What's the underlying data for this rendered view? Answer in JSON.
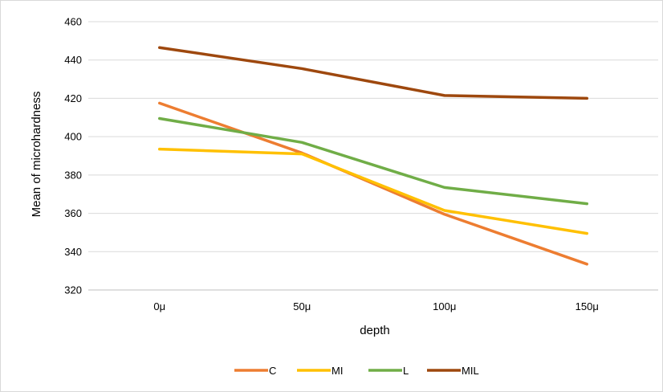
{
  "chart_data": {
    "type": "line",
    "title": "",
    "xlabel": "depth",
    "ylabel": "Mean of microhardness",
    "categories": [
      "0μ",
      "50μ",
      "100μ",
      "150μ"
    ],
    "ylim": [
      320,
      460
    ],
    "yticks": [
      320,
      340,
      360,
      380,
      400,
      420,
      440,
      460
    ],
    "grid": "horizontal",
    "legend_position": "bottom",
    "series": [
      {
        "name": "C",
        "color": "#ED7D31",
        "values": [
          417.5,
          391.5,
          359.5,
          333.5
        ]
      },
      {
        "name": "MI",
        "color": "#FFC000",
        "values": [
          393.5,
          391.0,
          361.5,
          349.5
        ]
      },
      {
        "name": "L",
        "color": "#70AD47",
        "values": [
          409.5,
          397.0,
          373.5,
          365.0
        ]
      },
      {
        "name": "MIL",
        "color": "#9E480E",
        "values": [
          446.5,
          435.5,
          421.5,
          420.0
        ]
      }
    ]
  }
}
